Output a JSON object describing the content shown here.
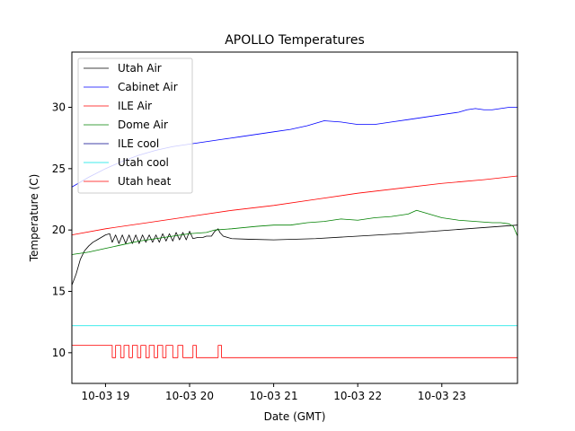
{
  "chart_data": {
    "type": "line",
    "title": "APOLLO Temperatures",
    "xlabel": "Date (GMT)",
    "ylabel": "Temperature (C)",
    "xlim": [
      18.6,
      23.9
    ],
    "ylim": [
      7.5,
      34.5
    ],
    "xticks": [
      {
        "value": 19,
        "label": "10-03 19"
      },
      {
        "value": 20,
        "label": "10-03 20"
      },
      {
        "value": 21,
        "label": "10-03 21"
      },
      {
        "value": 22,
        "label": "10-03 22"
      },
      {
        "value": 23,
        "label": "10-03 23"
      }
    ],
    "yticks": [
      {
        "value": 10,
        "label": "10"
      },
      {
        "value": 15,
        "label": "15"
      },
      {
        "value": 20,
        "label": "20"
      },
      {
        "value": 25,
        "label": "25"
      },
      {
        "value": 30,
        "label": "30"
      }
    ],
    "grid": false,
    "legend_position": "top-left",
    "series": [
      {
        "name": "Utah Air",
        "color": "#000000",
        "points": [
          [
            18.6,
            15.5
          ],
          [
            18.65,
            16.4
          ],
          [
            18.7,
            17.6
          ],
          [
            18.75,
            18.3
          ],
          [
            18.8,
            18.7
          ],
          [
            18.85,
            19.0
          ],
          [
            18.9,
            19.2
          ],
          [
            18.95,
            19.4
          ],
          [
            19.0,
            19.6
          ],
          [
            19.05,
            19.7
          ],
          [
            19.08,
            19.0
          ],
          [
            19.12,
            19.6
          ],
          [
            19.16,
            18.9
          ],
          [
            19.2,
            19.6
          ],
          [
            19.24,
            18.9
          ],
          [
            19.28,
            19.6
          ],
          [
            19.32,
            18.9
          ],
          [
            19.36,
            19.6
          ],
          [
            19.4,
            18.9
          ],
          [
            19.44,
            19.6
          ],
          [
            19.48,
            19.0
          ],
          [
            19.52,
            19.6
          ],
          [
            19.56,
            19.0
          ],
          [
            19.6,
            19.6
          ],
          [
            19.64,
            19.0
          ],
          [
            19.68,
            19.7
          ],
          [
            19.72,
            19.1
          ],
          [
            19.76,
            19.7
          ],
          [
            19.8,
            19.1
          ],
          [
            19.84,
            19.8
          ],
          [
            19.88,
            19.2
          ],
          [
            19.92,
            19.8
          ],
          [
            19.96,
            19.2
          ],
          [
            20.0,
            19.9
          ],
          [
            20.04,
            19.3
          ],
          [
            20.1,
            19.4
          ],
          [
            20.16,
            19.4
          ],
          [
            20.2,
            19.5
          ],
          [
            20.26,
            19.5
          ],
          [
            20.3,
            19.9
          ],
          [
            20.34,
            20.1
          ],
          [
            20.36,
            19.8
          ],
          [
            20.4,
            19.5
          ],
          [
            20.5,
            19.3
          ],
          [
            20.7,
            19.25
          ],
          [
            21.0,
            19.2
          ],
          [
            21.5,
            19.3
          ],
          [
            22.0,
            19.5
          ],
          [
            22.5,
            19.7
          ],
          [
            23.0,
            19.95
          ],
          [
            23.5,
            20.2
          ],
          [
            23.9,
            20.4
          ]
        ]
      },
      {
        "name": "Cabinet Air",
        "color": "#0000ff",
        "points": [
          [
            18.6,
            23.5
          ],
          [
            18.8,
            24.3
          ],
          [
            19.0,
            25.0
          ],
          [
            19.2,
            25.6
          ],
          [
            19.4,
            26.1
          ],
          [
            19.6,
            26.5
          ],
          [
            19.8,
            26.8
          ],
          [
            20.0,
            27.0
          ],
          [
            20.2,
            27.2
          ],
          [
            20.4,
            27.4
          ],
          [
            20.6,
            27.6
          ],
          [
            20.8,
            27.8
          ],
          [
            21.0,
            28.0
          ],
          [
            21.2,
            28.2
          ],
          [
            21.4,
            28.5
          ],
          [
            21.6,
            28.9
          ],
          [
            21.8,
            28.8
          ],
          [
            22.0,
            28.6
          ],
          [
            22.2,
            28.6
          ],
          [
            22.4,
            28.8
          ],
          [
            22.6,
            29.0
          ],
          [
            22.8,
            29.2
          ],
          [
            23.0,
            29.4
          ],
          [
            23.2,
            29.6
          ],
          [
            23.3,
            29.8
          ],
          [
            23.4,
            29.9
          ],
          [
            23.5,
            29.8
          ],
          [
            23.6,
            29.8
          ],
          [
            23.7,
            29.9
          ],
          [
            23.8,
            30.0
          ],
          [
            23.9,
            30.0
          ]
        ]
      },
      {
        "name": "ILE Air",
        "color": "#ff0000",
        "points": [
          [
            18.6,
            19.6
          ],
          [
            19.0,
            20.1
          ],
          [
            19.5,
            20.6
          ],
          [
            20.0,
            21.1
          ],
          [
            20.5,
            21.6
          ],
          [
            21.0,
            22.0
          ],
          [
            21.5,
            22.5
          ],
          [
            22.0,
            23.0
          ],
          [
            22.5,
            23.4
          ],
          [
            23.0,
            23.8
          ],
          [
            23.5,
            24.1
          ],
          [
            23.9,
            24.4
          ]
        ]
      },
      {
        "name": "Dome Air",
        "color": "#008000",
        "points": [
          [
            18.6,
            18.0
          ],
          [
            18.8,
            18.2
          ],
          [
            19.0,
            18.5
          ],
          [
            19.2,
            18.8
          ],
          [
            19.4,
            19.1
          ],
          [
            19.6,
            19.3
          ],
          [
            19.8,
            19.5
          ],
          [
            20.0,
            19.7
          ],
          [
            20.2,
            19.8
          ],
          [
            20.3,
            20.0
          ],
          [
            20.5,
            20.1
          ],
          [
            20.8,
            20.3
          ],
          [
            21.0,
            20.4
          ],
          [
            21.2,
            20.4
          ],
          [
            21.4,
            20.6
          ],
          [
            21.6,
            20.7
          ],
          [
            21.8,
            20.9
          ],
          [
            22.0,
            20.8
          ],
          [
            22.2,
            21.0
          ],
          [
            22.4,
            21.1
          ],
          [
            22.6,
            21.3
          ],
          [
            22.7,
            21.6
          ],
          [
            22.8,
            21.4
          ],
          [
            23.0,
            21.0
          ],
          [
            23.2,
            20.8
          ],
          [
            23.4,
            20.7
          ],
          [
            23.6,
            20.6
          ],
          [
            23.7,
            20.6
          ],
          [
            23.8,
            20.5
          ],
          [
            23.85,
            20.3
          ],
          [
            23.9,
            19.5
          ]
        ]
      },
      {
        "name": "ILE cool",
        "color": "#00008b",
        "points": []
      },
      {
        "name": "Utah cool",
        "color": "#00e5e5",
        "points": [
          [
            18.6,
            12.2
          ],
          [
            23.9,
            12.2
          ]
        ]
      },
      {
        "name": "Utah heat",
        "color": "#ff0000",
        "points": [
          [
            18.6,
            10.6
          ],
          [
            19.08,
            10.6
          ],
          [
            19.08,
            9.6
          ],
          [
            19.12,
            9.6
          ],
          [
            19.12,
            10.6
          ],
          [
            19.18,
            10.6
          ],
          [
            19.18,
            9.6
          ],
          [
            19.22,
            9.6
          ],
          [
            19.22,
            10.6
          ],
          [
            19.28,
            10.6
          ],
          [
            19.28,
            9.6
          ],
          [
            19.32,
            9.6
          ],
          [
            19.32,
            10.6
          ],
          [
            19.38,
            10.6
          ],
          [
            19.38,
            9.6
          ],
          [
            19.42,
            9.6
          ],
          [
            19.42,
            10.6
          ],
          [
            19.48,
            10.6
          ],
          [
            19.48,
            9.6
          ],
          [
            19.52,
            9.6
          ],
          [
            19.52,
            10.6
          ],
          [
            19.58,
            10.6
          ],
          [
            19.58,
            9.6
          ],
          [
            19.62,
            9.6
          ],
          [
            19.62,
            10.6
          ],
          [
            19.68,
            10.6
          ],
          [
            19.68,
            9.6
          ],
          [
            19.72,
            9.6
          ],
          [
            19.72,
            10.6
          ],
          [
            19.8,
            10.6
          ],
          [
            19.8,
            9.6
          ],
          [
            19.86,
            9.6
          ],
          [
            19.86,
            10.6
          ],
          [
            19.92,
            10.6
          ],
          [
            19.92,
            9.6
          ],
          [
            20.04,
            9.6
          ],
          [
            20.04,
            10.6
          ],
          [
            20.08,
            10.6
          ],
          [
            20.08,
            9.6
          ],
          [
            20.34,
            9.6
          ],
          [
            20.34,
            10.6
          ],
          [
            20.38,
            10.6
          ],
          [
            20.38,
            9.6
          ],
          [
            23.9,
            9.6
          ]
        ]
      }
    ]
  }
}
